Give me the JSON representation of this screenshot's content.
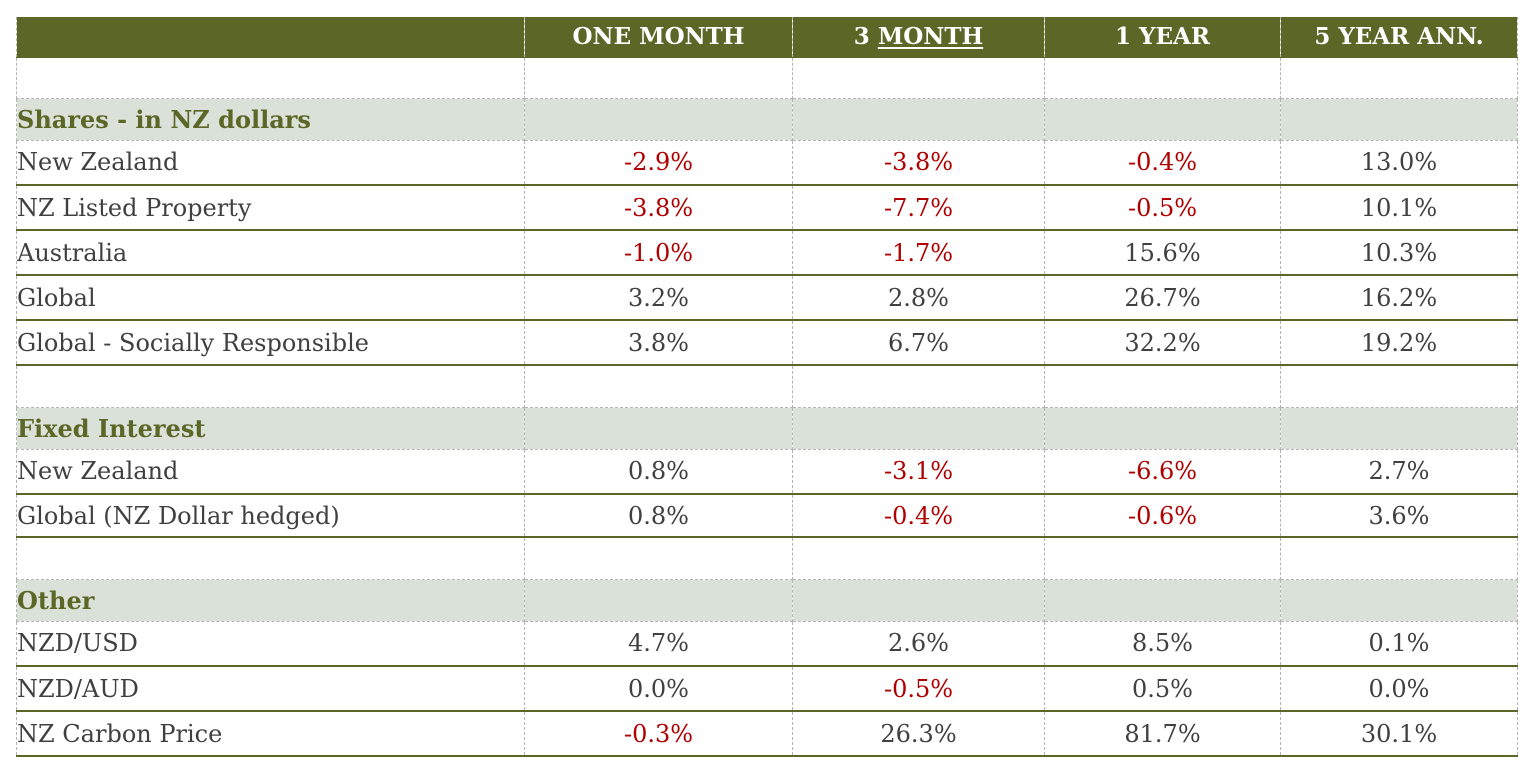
{
  "chart_data": {
    "type": "table",
    "columns": [
      "",
      "ONE MONTH",
      "3 MONTH",
      "1 YEAR",
      "5 YEAR ANN."
    ],
    "colors": {
      "header_bg": "#5b6627",
      "section_bg": "#d9e1d8",
      "section_text": "#5b6627",
      "negative_text": "#b00000",
      "positive_text": "#404040"
    },
    "sections": [
      {
        "title": "Shares - in NZ dollars",
        "rows": [
          {
            "label": "New Zealand",
            "values": [
              "-2.9%",
              "-3.8%",
              "-0.4%",
              "13.0%"
            ]
          },
          {
            "label": "NZ Listed Property",
            "values": [
              "-3.8%",
              "-7.7%",
              "-0.5%",
              "10.1%"
            ]
          },
          {
            "label": "Australia",
            "values": [
              "-1.0%",
              "-1.7%",
              "15.6%",
              "10.3%"
            ]
          },
          {
            "label": "Global",
            "values": [
              "3.2%",
              "2.8%",
              "26.7%",
              "16.2%"
            ]
          },
          {
            "label": "Global - Socially Responsible",
            "values": [
              "3.8%",
              "6.7%",
              "32.2%",
              "19.2%"
            ]
          }
        ]
      },
      {
        "title": "Fixed Interest",
        "rows": [
          {
            "label": "New Zealand",
            "values": [
              "0.8%",
              "-3.1%",
              "-6.6%",
              "2.7%"
            ]
          },
          {
            "label": "Global (NZ Dollar hedged)",
            "values": [
              "0.8%",
              "-0.4%",
              "-0.6%",
              "3.6%"
            ]
          }
        ]
      },
      {
        "title": "Other",
        "rows": [
          {
            "label": "NZD/USD",
            "values": [
              "4.7%",
              "2.6%",
              "8.5%",
              "0.1%"
            ]
          },
          {
            "label": "NZD/AUD",
            "values": [
              "0.0%",
              "-0.5%",
              "0.5%",
              "0.0%"
            ]
          },
          {
            "label": "NZ Carbon Price",
            "values": [
              "-0.3%",
              "26.3%",
              "81.7%",
              "30.1%"
            ]
          }
        ]
      }
    ]
  }
}
